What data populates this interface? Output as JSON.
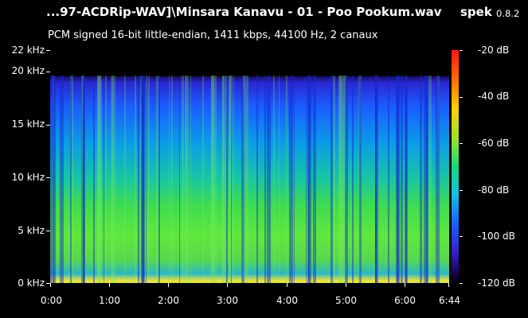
{
  "title": "...97-ACDRip-WAV]\\Minsara Kanavu - 01 - Poo Pookum.wav",
  "app": {
    "name": "spek",
    "version": "0.8.2"
  },
  "info": "PCM signed 16-bit little-endian, 1411 kbps, 44100 Hz, 2 canaux",
  "freq_axis": [
    "22 kHz",
    "20 kHz",
    "15 kHz",
    "10 kHz",
    "5 kHz",
    "0 kHz"
  ],
  "time_axis": [
    "0:00",
    "1:00",
    "2:00",
    "3:00",
    "4:00",
    "5:00",
    "6:00",
    "6:44"
  ],
  "db_axis": [
    "-20 dB",
    "-40 dB",
    "-60 dB",
    "-80 dB",
    "-100 dB",
    "-120 dB"
  ]
}
